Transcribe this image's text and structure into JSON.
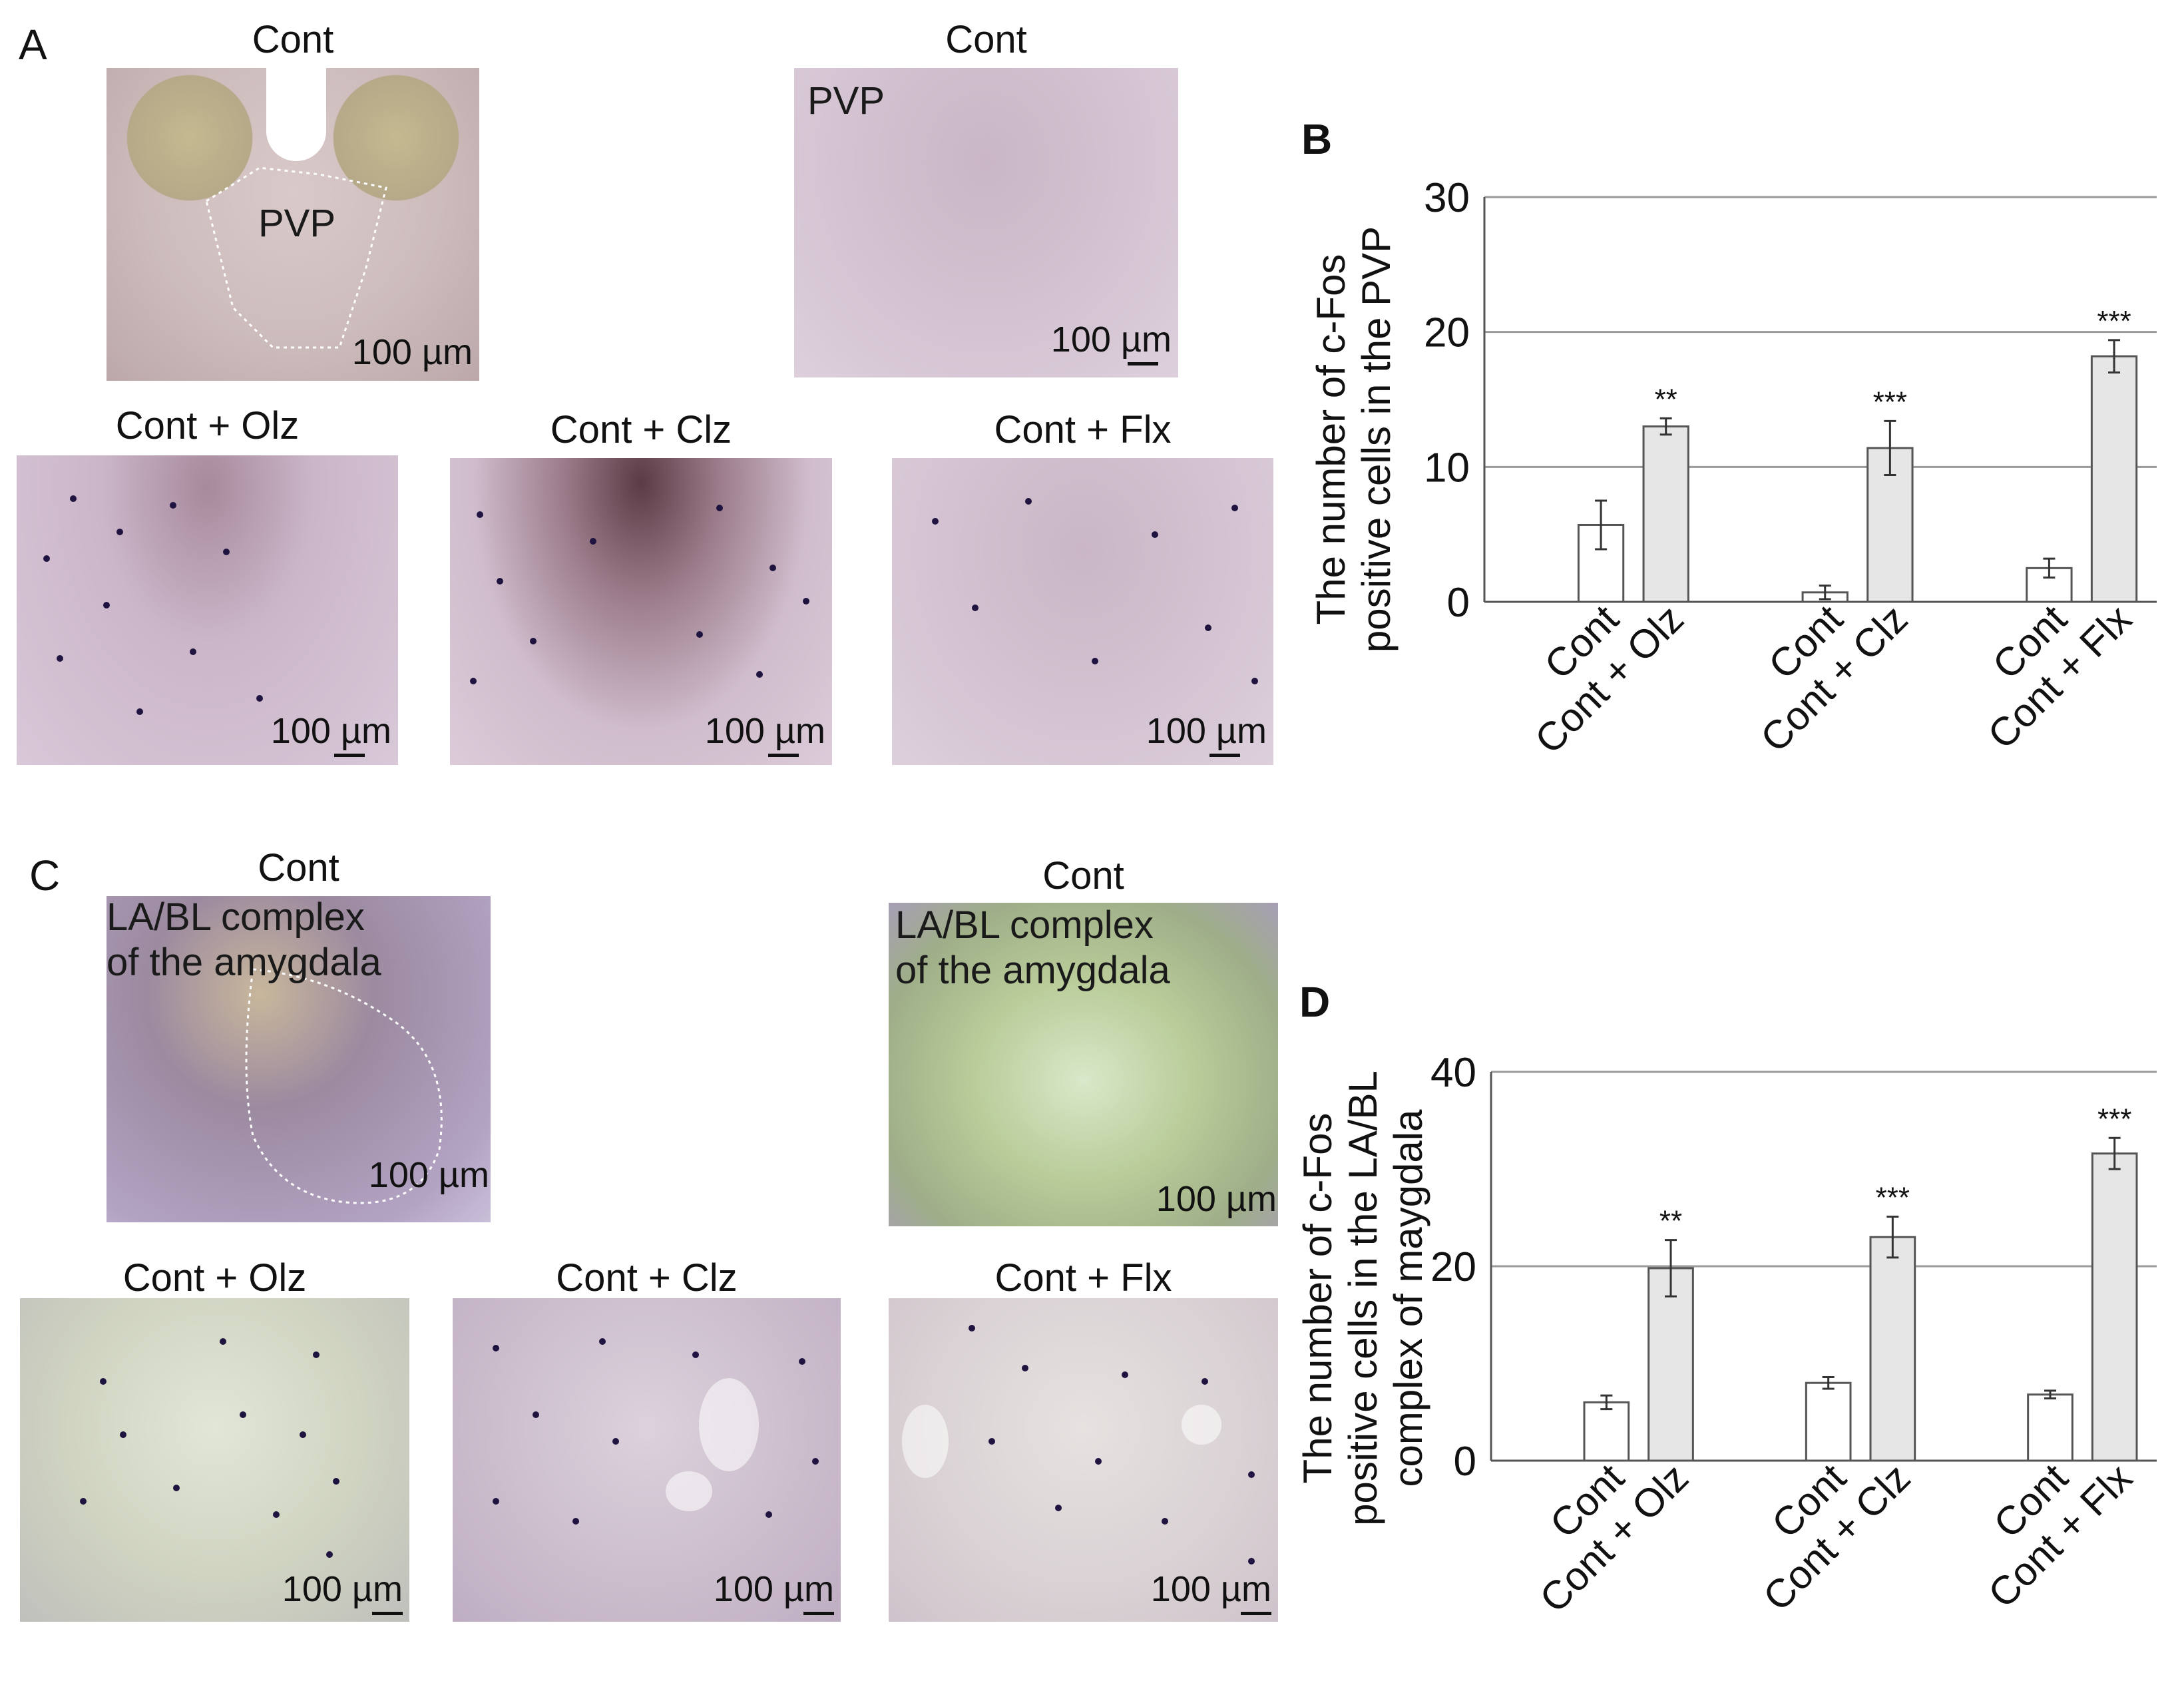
{
  "panels": {
    "A": {
      "letter": "A",
      "micrographs": [
        {
          "title": "Cont",
          "label": "PVP",
          "scale": "100 µm"
        },
        {
          "title": "Cont",
          "label": "PVP",
          "scale": "100 µm"
        },
        {
          "title": "Cont + Olz",
          "scale": "100 µm"
        },
        {
          "title": "Cont + Clz",
          "scale": "100 µm"
        },
        {
          "title": "Cont + Flx",
          "scale": "100 µm"
        }
      ]
    },
    "B": {
      "letter": "B"
    },
    "C": {
      "letter": "C",
      "micrographs": [
        {
          "title": "Cont",
          "label": "LA/BL complex\nof the amygdala",
          "scale": "100 µm"
        },
        {
          "title": "Cont",
          "label": "LA/BL complex\nof the amygdala",
          "scale": "100 µm"
        },
        {
          "title": "Cont + Olz",
          "scale": "100 µm"
        },
        {
          "title": "Cont + Clz",
          "scale": "100 µm"
        },
        {
          "title": "Cont + Flx",
          "scale": "100 µm"
        }
      ]
    },
    "D": {
      "letter": "D"
    }
  },
  "chart_data": [
    {
      "panel": "B",
      "type": "bar",
      "ylabel": "The number of c-Fos\npositive cells in the PVP",
      "ylim": [
        0,
        30
      ],
      "yticks": [
        0,
        10,
        20,
        30
      ],
      "grid": true,
      "groups": [
        {
          "bars": [
            {
              "label": "Cont",
              "value": 5.7,
              "err": 1.8,
              "fill": "#ffffff"
            },
            {
              "label": "Cont + Olz",
              "value": 13.0,
              "err": 0.6,
              "fill": "#e6e6e6",
              "sig": "**"
            }
          ]
        },
        {
          "bars": [
            {
              "label": "Cont",
              "value": 0.7,
              "err": 0.5,
              "fill": "#ffffff"
            },
            {
              "label": "Cont + Clz",
              "value": 11.4,
              "err": 2.0,
              "fill": "#e6e6e6",
              "sig": "***"
            }
          ]
        },
        {
          "bars": [
            {
              "label": "Cont",
              "value": 2.5,
              "err": 0.7,
              "fill": "#ffffff"
            },
            {
              "label": "Cont + Flx",
              "value": 18.2,
              "err": 1.2,
              "fill": "#e6e6e6",
              "sig": "***"
            }
          ]
        }
      ]
    },
    {
      "panel": "D",
      "type": "bar",
      "ylabel": "The number of c-Fos\npositive cells in the LA/BL\ncomplex of maygdala",
      "ylim": [
        0,
        40
      ],
      "yticks": [
        0,
        20,
        40
      ],
      "grid": true,
      "groups": [
        {
          "bars": [
            {
              "label": "Cont",
              "value": 6.0,
              "err": 0.7,
              "fill": "#ffffff"
            },
            {
              "label": "Cont + Olz",
              "value": 19.8,
              "err": 2.9,
              "fill": "#e6e6e6",
              "sig": "**"
            }
          ]
        },
        {
          "bars": [
            {
              "label": "Cont",
              "value": 8.0,
              "err": 0.6,
              "fill": "#ffffff"
            },
            {
              "label": "Cont + Clz",
              "value": 23.0,
              "err": 2.1,
              "fill": "#e6e6e6",
              "sig": "***"
            }
          ]
        },
        {
          "bars": [
            {
              "label": "Cont",
              "value": 6.8,
              "err": 0.4,
              "fill": "#ffffff"
            },
            {
              "label": "Cont + Flx",
              "value": 31.6,
              "err": 1.6,
              "fill": "#e6e6e6",
              "sig": "***"
            }
          ]
        }
      ]
    }
  ]
}
